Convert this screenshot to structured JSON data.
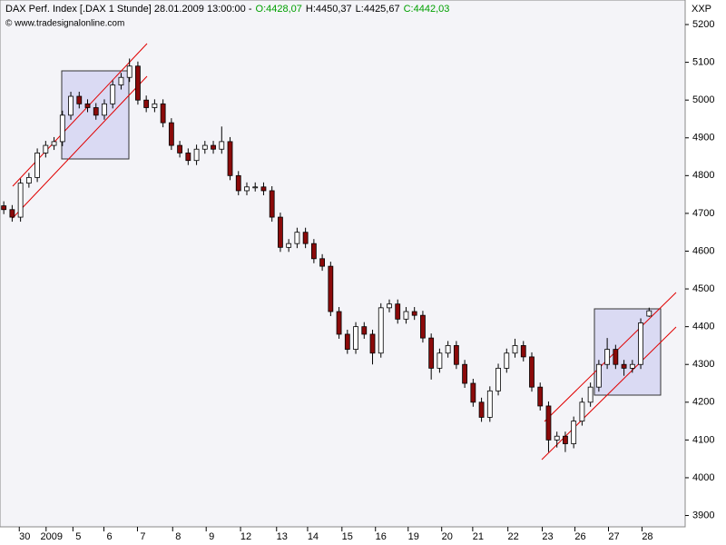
{
  "chart_data": {
    "type": "candlestick",
    "title": "DAX Perf. Index [.DAX  1 Stunde] 28.01.2009 13:00:00 -",
    "ohlc_labels": [
      {
        "text": "O:4428,07",
        "color": "#00a000"
      },
      {
        "text": "H:4450,37",
        "color": "#000000"
      },
      {
        "text": "L:4425,67",
        "color": "#000000"
      },
      {
        "text": "C:4442,03",
        "color": "#00a000"
      }
    ],
    "subtitle": "© www.tradesignalonline.com",
    "axis_label": "XXP",
    "up_color": "#ffffff",
    "down_color": "#8b0a0a",
    "ylim": [
      3870,
      5265
    ],
    "yticks": [
      3900,
      4000,
      4100,
      4200,
      4300,
      4400,
      4500,
      4600,
      4700,
      4800,
      4900,
      5000,
      5100,
      5200
    ],
    "xlim": [
      -0.45,
      81.3
    ],
    "xticks": [
      {
        "value": 2.5,
        "label": "30"
      },
      {
        "value": 5.7,
        "label": "2009"
      },
      {
        "value": 8.9,
        "label": "5"
      },
      {
        "value": 12.6,
        "label": "6"
      },
      {
        "value": 16.6,
        "label": "7"
      },
      {
        "value": 20.8,
        "label": "8"
      },
      {
        "value": 24.8,
        "label": "9"
      },
      {
        "value": 28.9,
        "label": "12"
      },
      {
        "value": 33.2,
        "label": "13"
      },
      {
        "value": 36.9,
        "label": "14"
      },
      {
        "value": 41.0,
        "label": "15"
      },
      {
        "value": 45.0,
        "label": "16"
      },
      {
        "value": 48.9,
        "label": "19"
      },
      {
        "value": 52.9,
        "label": "20"
      },
      {
        "value": 56.6,
        "label": "21"
      },
      {
        "value": 60.8,
        "label": "22"
      },
      {
        "value": 64.9,
        "label": "23"
      },
      {
        "value": 68.8,
        "label": "26"
      },
      {
        "value": 72.8,
        "label": "27"
      },
      {
        "value": 76.8,
        "label": "28"
      }
    ],
    "open": [
      4720,
      4710,
      4690,
      4780,
      4795,
      4860,
      4880,
      4890,
      4960,
      5010,
      4990,
      4980,
      4960,
      4990,
      5040,
      5060,
      5090,
      5000,
      4980,
      4990,
      4940,
      4880,
      4860,
      4840,
      4870,
      4880,
      4870,
      4890,
      4800,
      4760,
      4770,
      4770,
      4760,
      4690,
      4610,
      4620,
      4650,
      4620,
      4580,
      4560,
      4440,
      4380,
      4340,
      4400,
      4380,
      4330,
      4450,
      4460,
      4420,
      4440,
      4430,
      4370,
      4290,
      4330,
      4350,
      4300,
      4250,
      4200,
      4160,
      4230,
      4290,
      4330,
      4350,
      4320,
      4240,
      4190,
      4100,
      4110,
      4090,
      4150,
      4200,
      4240,
      4300,
      4340,
      4300,
      4290,
      4300,
      4428.07
    ],
    "high": [
      4732,
      4722,
      4792,
      4807,
      4872,
      4892,
      4902,
      4972,
      5022,
      5022,
      5002,
      4992,
      5002,
      5052,
      5072,
      5110,
      5102,
      5012,
      5002,
      5002,
      4952,
      4892,
      4872,
      4882,
      4892,
      4892,
      4930,
      4902,
      4812,
      4782,
      4782,
      4782,
      4772,
      4702,
      4632,
      4662,
      4662,
      4632,
      4592,
      4572,
      4452,
      4392,
      4412,
      4412,
      4392,
      4462,
      4472,
      4472,
      4452,
      4452,
      4442,
      4382,
      4342,
      4362,
      4362,
      4312,
      4262,
      4212,
      4242,
      4302,
      4342,
      4368,
      4362,
      4332,
      4252,
      4202,
      4122,
      4122,
      4162,
      4212,
      4252,
      4312,
      4370,
      4352,
      4312,
      4312,
      4422,
      4450.37
    ],
    "low": [
      4698,
      4678,
      4678,
      4768,
      4783,
      4848,
      4868,
      4878,
      4948,
      4978,
      4968,
      4948,
      4948,
      4978,
      5028,
      5048,
      4988,
      4968,
      4968,
      4928,
      4868,
      4848,
      4828,
      4828,
      4858,
      4858,
      4858,
      4788,
      4748,
      4748,
      4758,
      4748,
      4678,
      4598,
      4598,
      4608,
      4608,
      4568,
      4548,
      4428,
      4368,
      4328,
      4328,
      4368,
      4300,
      4318,
      4438,
      4408,
      4408,
      4418,
      4358,
      4260,
      4278,
      4318,
      4288,
      4238,
      4188,
      4148,
      4148,
      4218,
      4278,
      4318,
      4308,
      4228,
      4178,
      4068,
      4080,
      4068,
      4078,
      4138,
      4188,
      4228,
      4288,
      4288,
      4270,
      4278,
      4288,
      4425.67
    ],
    "close": [
      4710,
      4690,
      4780,
      4795,
      4860,
      4880,
      4890,
      4960,
      5010,
      4990,
      4980,
      4960,
      4990,
      5040,
      5060,
      5090,
      5000,
      4980,
      4990,
      4940,
      4880,
      4860,
      4840,
      4870,
      4880,
      4870,
      4890,
      4800,
      4760,
      4770,
      4770,
      4760,
      4690,
      4610,
      4620,
      4650,
      4620,
      4580,
      4560,
      4440,
      4380,
      4340,
      4400,
      4380,
      4330,
      4450,
      4460,
      4420,
      4440,
      4430,
      4370,
      4290,
      4330,
      4350,
      4300,
      4250,
      4200,
      4160,
      4230,
      4290,
      4330,
      4350,
      4320,
      4240,
      4190,
      4100,
      4110,
      4090,
      4150,
      4200,
      4240,
      4300,
      4340,
      4300,
      4290,
      4300,
      4410,
      4442.03
    ]
  }
}
